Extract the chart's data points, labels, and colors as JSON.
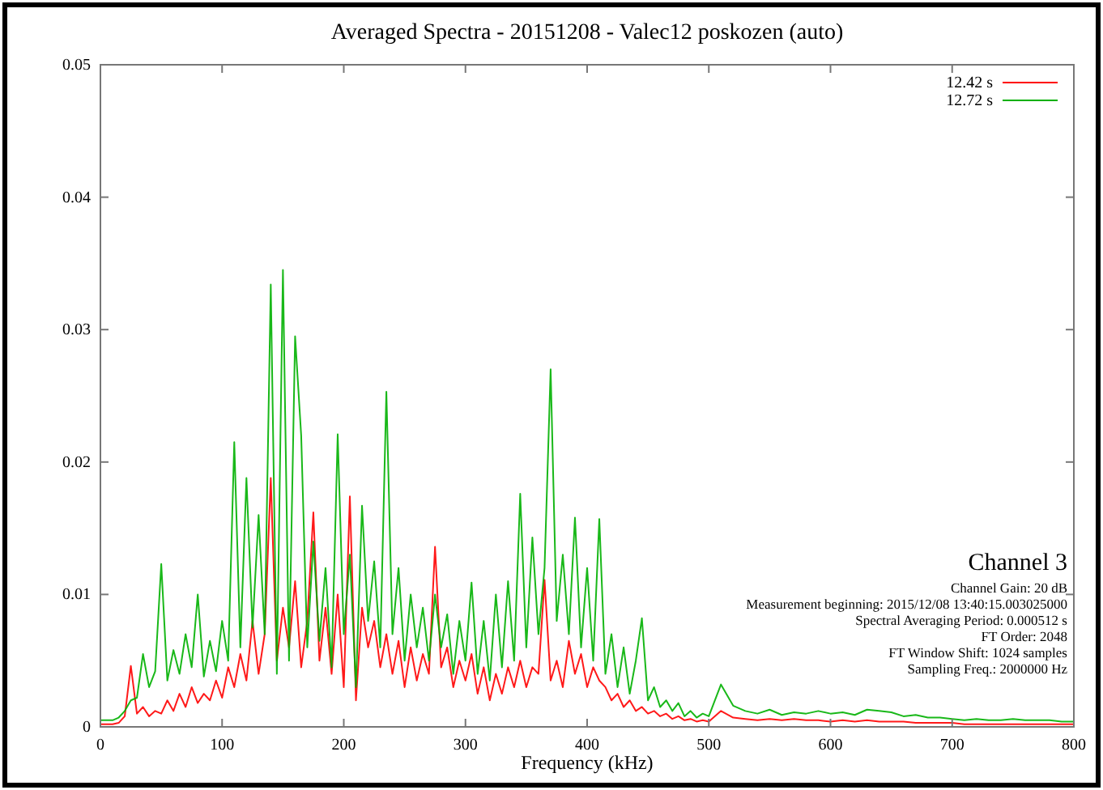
{
  "chart_data": {
    "type": "line",
    "title": "Averaged Spectra - 20151208 - Valec12 poskozen (auto)",
    "xlabel": "Frequency (kHz)",
    "x": [
      0,
      5,
      10,
      15,
      20,
      25,
      30,
      35,
      40,
      45,
      50,
      55,
      60,
      65,
      70,
      75,
      80,
      85,
      90,
      95,
      100,
      105,
      110,
      115,
      120,
      125,
      130,
      135,
      140,
      145,
      150,
      155,
      160,
      165,
      170,
      175,
      180,
      185,
      190,
      195,
      200,
      205,
      210,
      215,
      220,
      225,
      230,
      235,
      240,
      245,
      250,
      255,
      260,
      265,
      270,
      275,
      280,
      285,
      290,
      295,
      300,
      305,
      310,
      315,
      320,
      325,
      330,
      335,
      340,
      345,
      350,
      355,
      360,
      365,
      370,
      375,
      380,
      385,
      390,
      395,
      400,
      405,
      410,
      415,
      420,
      425,
      430,
      435,
      440,
      445,
      450,
      455,
      460,
      465,
      470,
      475,
      480,
      485,
      490,
      495,
      500,
      510,
      520,
      530,
      540,
      550,
      560,
      570,
      580,
      590,
      600,
      610,
      620,
      630,
      640,
      650,
      660,
      670,
      680,
      690,
      700,
      710,
      720,
      730,
      740,
      750,
      760,
      770,
      780,
      790,
      800
    ],
    "series": [
      {
        "name": "12.42 s",
        "color": "#ff0000",
        "values": [
          0.0002,
          0.0002,
          0.0002,
          0.0003,
          0.0008,
          0.0046,
          0.001,
          0.0015,
          0.0008,
          0.0012,
          0.001,
          0.002,
          0.0012,
          0.0025,
          0.0015,
          0.003,
          0.0018,
          0.0025,
          0.002,
          0.0035,
          0.0022,
          0.0045,
          0.003,
          0.0055,
          0.0035,
          0.008,
          0.004,
          0.007,
          0.0188,
          0.005,
          0.009,
          0.006,
          0.011,
          0.0045,
          0.008,
          0.0162,
          0.005,
          0.009,
          0.004,
          0.01,
          0.003,
          0.0174,
          0.002,
          0.009,
          0.006,
          0.008,
          0.0045,
          0.007,
          0.004,
          0.0065,
          0.003,
          0.006,
          0.0035,
          0.0055,
          0.004,
          0.0136,
          0.0045,
          0.006,
          0.003,
          0.005,
          0.0035,
          0.0055,
          0.0025,
          0.0045,
          0.002,
          0.004,
          0.0025,
          0.0045,
          0.003,
          0.005,
          0.003,
          0.0045,
          0.004,
          0.0111,
          0.0035,
          0.005,
          0.003,
          0.0065,
          0.004,
          0.0055,
          0.003,
          0.0045,
          0.0035,
          0.003,
          0.002,
          0.0025,
          0.0015,
          0.002,
          0.0012,
          0.0015,
          0.001,
          0.0012,
          0.0008,
          0.001,
          0.0006,
          0.0008,
          0.0005,
          0.0006,
          0.0004,
          0.0005,
          0.0004,
          0.0012,
          0.0007,
          0.0006,
          0.0005,
          0.0006,
          0.0005,
          0.0006,
          0.0005,
          0.0005,
          0.0004,
          0.0005,
          0.0004,
          0.0005,
          0.0004,
          0.0004,
          0.0004,
          0.0003,
          0.0003,
          0.0003,
          0.0003,
          0.0002,
          0.0002,
          0.0002,
          0.0002,
          0.0002,
          0.0002,
          0.0002,
          0.0002,
          0.0002,
          0.0002
        ]
      },
      {
        "name": "12.72 s",
        "color": "#00b000",
        "values": [
          0.0005,
          0.0005,
          0.0005,
          0.0007,
          0.0012,
          0.002,
          0.0022,
          0.0055,
          0.003,
          0.0042,
          0.0123,
          0.0035,
          0.0058,
          0.004,
          0.007,
          0.0045,
          0.01,
          0.0038,
          0.0065,
          0.0042,
          0.008,
          0.005,
          0.0215,
          0.006,
          0.0188,
          0.0075,
          0.016,
          0.007,
          0.0334,
          0.004,
          0.0345,
          0.005,
          0.0295,
          0.022,
          0.006,
          0.014,
          0.0065,
          0.012,
          0.0045,
          0.0221,
          0.007,
          0.013,
          0.003,
          0.0167,
          0.008,
          0.0125,
          0.006,
          0.0253,
          0.007,
          0.012,
          0.005,
          0.01,
          0.006,
          0.009,
          0.005,
          0.01,
          0.006,
          0.0085,
          0.004,
          0.008,
          0.005,
          0.0109,
          0.004,
          0.008,
          0.0035,
          0.01,
          0.0045,
          0.011,
          0.005,
          0.0176,
          0.006,
          0.0143,
          0.007,
          0.012,
          0.027,
          0.008,
          0.013,
          0.007,
          0.0158,
          0.006,
          0.012,
          0.005,
          0.0157,
          0.004,
          0.007,
          0.003,
          0.006,
          0.0025,
          0.005,
          0.0082,
          0.002,
          0.003,
          0.0015,
          0.002,
          0.0012,
          0.0018,
          0.0008,
          0.0012,
          0.0007,
          0.001,
          0.0008,
          0.0032,
          0.0016,
          0.0012,
          0.001,
          0.0013,
          0.0009,
          0.0011,
          0.001,
          0.0012,
          0.001,
          0.0011,
          0.0009,
          0.0013,
          0.0012,
          0.0011,
          0.0008,
          0.0009,
          0.0007,
          0.0007,
          0.0006,
          0.0005,
          0.0006,
          0.0005,
          0.0005,
          0.0006,
          0.0005,
          0.0005,
          0.0005,
          0.0004,
          0.0004
        ]
      }
    ],
    "xlim": [
      0,
      800
    ],
    "xticks": [
      0,
      100,
      200,
      300,
      400,
      500,
      600,
      700,
      800
    ],
    "ylim": [
      0,
      0.05
    ],
    "yticks": [
      0,
      0.01,
      0.02,
      0.03,
      0.04,
      0.05
    ],
    "legend": "top right",
    "grid": false,
    "line_style": "solid",
    "annotations": [
      "Channel 3",
      "Channel Gain: 20 dB",
      "Measurement beginning: 2015/12/08 13:40:15.003025000",
      "Spectral Averaging Period: 0.000512 s",
      "FT Order: 2048",
      "FT Window Shift: 1024 samples",
      "Sampling Freq.: 2000000 Hz"
    ]
  }
}
